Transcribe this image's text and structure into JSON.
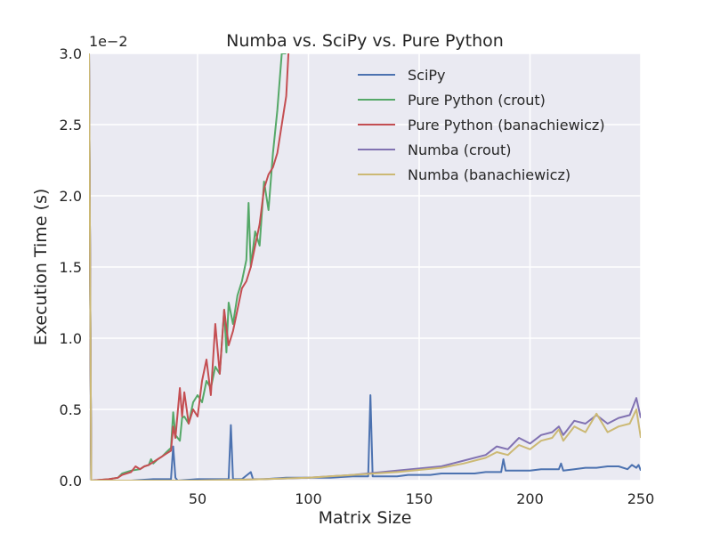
{
  "chart_data": {
    "type": "line",
    "title": "Numba vs. SciPy vs. Pure Python",
    "xlabel": "Matrix Size",
    "ylabel": "Execution Time (s)",
    "y_offset_label": "1e−2",
    "xlim": [
      1,
      250
    ],
    "ylim": [
      0,
      3.0
    ],
    "y_scale_note": "values in units of 1e-2 seconds",
    "grid": true,
    "legend_position": "top-right",
    "background": "#eaeaf2",
    "xticks": [
      50,
      100,
      150,
      200,
      250
    ],
    "yticks": [
      0.0,
      0.5,
      1.0,
      1.5,
      2.0,
      2.5,
      3.0
    ],
    "xtick_labels": [
      "50",
      "100",
      "150",
      "200",
      "250"
    ],
    "ytick_labels": [
      "0.0",
      "0.5",
      "1.0",
      "1.5",
      "2.0",
      "2.5",
      "3.0"
    ],
    "series": [
      {
        "name": "SciPy",
        "color": "#4c72b0",
        "points": [
          [
            1,
            3.0
          ],
          [
            2,
            0.0
          ],
          [
            10,
            0.0
          ],
          [
            20,
            0.0
          ],
          [
            30,
            0.01
          ],
          [
            38,
            0.01
          ],
          [
            39,
            0.24
          ],
          [
            40,
            0.02
          ],
          [
            41,
            0.0
          ],
          [
            50,
            0.01
          ],
          [
            60,
            0.01
          ],
          [
            64,
            0.01
          ],
          [
            65,
            0.39
          ],
          [
            66,
            0.01
          ],
          [
            70,
            0.01
          ],
          [
            74,
            0.06
          ],
          [
            75,
            0.01
          ],
          [
            80,
            0.01
          ],
          [
            90,
            0.02
          ],
          [
            100,
            0.02
          ],
          [
            110,
            0.02
          ],
          [
            120,
            0.03
          ],
          [
            127,
            0.03
          ],
          [
            128,
            0.6
          ],
          [
            129,
            0.03
          ],
          [
            135,
            0.03
          ],
          [
            140,
            0.03
          ],
          [
            145,
            0.04
          ],
          [
            150,
            0.04
          ],
          [
            155,
            0.04
          ],
          [
            160,
            0.05
          ],
          [
            165,
            0.05
          ],
          [
            170,
            0.05
          ],
          [
            175,
            0.05
          ],
          [
            180,
            0.06
          ],
          [
            185,
            0.06
          ],
          [
            187,
            0.06
          ],
          [
            188,
            0.15
          ],
          [
            189,
            0.07
          ],
          [
            195,
            0.07
          ],
          [
            200,
            0.07
          ],
          [
            205,
            0.08
          ],
          [
            210,
            0.08
          ],
          [
            213,
            0.08
          ],
          [
            214,
            0.12
          ],
          [
            215,
            0.07
          ],
          [
            220,
            0.08
          ],
          [
            225,
            0.09
          ],
          [
            230,
            0.09
          ],
          [
            235,
            0.1
          ],
          [
            240,
            0.1
          ],
          [
            244,
            0.08
          ],
          [
            246,
            0.11
          ],
          [
            248,
            0.09
          ],
          [
            249,
            0.11
          ],
          [
            250,
            0.07
          ]
        ]
      },
      {
        "name": "Pure Python (crout)",
        "color": "#55a868",
        "points": [
          [
            1,
            3.0
          ],
          [
            2,
            0.0
          ],
          [
            10,
            0.01
          ],
          [
            14,
            0.02
          ],
          [
            16,
            0.05
          ],
          [
            20,
            0.07
          ],
          [
            24,
            0.08
          ],
          [
            26,
            0.1
          ],
          [
            28,
            0.11
          ],
          [
            29,
            0.15
          ],
          [
            30,
            0.12
          ],
          [
            32,
            0.15
          ],
          [
            34,
            0.17
          ],
          [
            36,
            0.2
          ],
          [
            38,
            0.23
          ],
          [
            39,
            0.48
          ],
          [
            40,
            0.32
          ],
          [
            42,
            0.28
          ],
          [
            43,
            0.44
          ],
          [
            44,
            0.45
          ],
          [
            46,
            0.4
          ],
          [
            48,
            0.55
          ],
          [
            50,
            0.6
          ],
          [
            52,
            0.55
          ],
          [
            54,
            0.7
          ],
          [
            56,
            0.65
          ],
          [
            58,
            0.8
          ],
          [
            60,
            0.75
          ],
          [
            62,
            1.2
          ],
          [
            63,
            0.9
          ],
          [
            64,
            1.25
          ],
          [
            66,
            1.1
          ],
          [
            68,
            1.3
          ],
          [
            70,
            1.4
          ],
          [
            72,
            1.55
          ],
          [
            73,
            1.95
          ],
          [
            74,
            1.5
          ],
          [
            76,
            1.75
          ],
          [
            78,
            1.65
          ],
          [
            80,
            2.1
          ],
          [
            82,
            1.9
          ],
          [
            84,
            2.3
          ],
          [
            86,
            2.6
          ],
          [
            88,
            3.0
          ],
          [
            90,
            3.0
          ]
        ]
      },
      {
        "name": "Pure Python (banachiewicz)",
        "color": "#c44e52",
        "points": [
          [
            1,
            3.0
          ],
          [
            2,
            0.0
          ],
          [
            10,
            0.01
          ],
          [
            14,
            0.02
          ],
          [
            16,
            0.04
          ],
          [
            20,
            0.06
          ],
          [
            22,
            0.1
          ],
          [
            24,
            0.08
          ],
          [
            26,
            0.1
          ],
          [
            28,
            0.11
          ],
          [
            30,
            0.13
          ],
          [
            32,
            0.15
          ],
          [
            34,
            0.17
          ],
          [
            36,
            0.19
          ],
          [
            38,
            0.21
          ],
          [
            39,
            0.38
          ],
          [
            40,
            0.3
          ],
          [
            42,
            0.65
          ],
          [
            43,
            0.45
          ],
          [
            44,
            0.62
          ],
          [
            46,
            0.4
          ],
          [
            48,
            0.5
          ],
          [
            50,
            0.45
          ],
          [
            52,
            0.7
          ],
          [
            54,
            0.85
          ],
          [
            56,
            0.6
          ],
          [
            58,
            1.1
          ],
          [
            60,
            0.75
          ],
          [
            62,
            1.2
          ],
          [
            64,
            0.95
          ],
          [
            66,
            1.05
          ],
          [
            68,
            1.2
          ],
          [
            70,
            1.35
          ],
          [
            72,
            1.4
          ],
          [
            74,
            1.5
          ],
          [
            76,
            1.65
          ],
          [
            78,
            1.8
          ],
          [
            80,
            2.05
          ],
          [
            82,
            2.15
          ],
          [
            84,
            2.2
          ],
          [
            86,
            2.3
          ],
          [
            88,
            2.5
          ],
          [
            90,
            2.7
          ],
          [
            91,
            3.0
          ]
        ]
      },
      {
        "name": "Numba (crout)",
        "color": "#8172b2",
        "points": [
          [
            1,
            3.0
          ],
          [
            2,
            0.0
          ],
          [
            50,
            0.0
          ],
          [
            80,
            0.01
          ],
          [
            100,
            0.02
          ],
          [
            120,
            0.04
          ],
          [
            140,
            0.07
          ],
          [
            160,
            0.1
          ],
          [
            170,
            0.14
          ],
          [
            180,
            0.18
          ],
          [
            185,
            0.24
          ],
          [
            190,
            0.22
          ],
          [
            195,
            0.3
          ],
          [
            200,
            0.26
          ],
          [
            205,
            0.32
          ],
          [
            210,
            0.34
          ],
          [
            213,
            0.38
          ],
          [
            215,
            0.32
          ],
          [
            220,
            0.42
          ],
          [
            225,
            0.4
          ],
          [
            230,
            0.46
          ],
          [
            235,
            0.4
          ],
          [
            240,
            0.44
          ],
          [
            245,
            0.46
          ],
          [
            248,
            0.58
          ],
          [
            250,
            0.44
          ]
        ]
      },
      {
        "name": "Numba (banachiewicz)",
        "color": "#ccb974",
        "points": [
          [
            1,
            3.0
          ],
          [
            2,
            0.0
          ],
          [
            50,
            0.0
          ],
          [
            80,
            0.01
          ],
          [
            100,
            0.02
          ],
          [
            120,
            0.04
          ],
          [
            140,
            0.06
          ],
          [
            160,
            0.09
          ],
          [
            170,
            0.12
          ],
          [
            180,
            0.16
          ],
          [
            185,
            0.2
          ],
          [
            190,
            0.18
          ],
          [
            195,
            0.25
          ],
          [
            200,
            0.22
          ],
          [
            205,
            0.28
          ],
          [
            210,
            0.3
          ],
          [
            213,
            0.36
          ],
          [
            215,
            0.28
          ],
          [
            220,
            0.38
          ],
          [
            225,
            0.34
          ],
          [
            230,
            0.47
          ],
          [
            235,
            0.34
          ],
          [
            240,
            0.38
          ],
          [
            245,
            0.4
          ],
          [
            248,
            0.5
          ],
          [
            250,
            0.3
          ]
        ]
      }
    ]
  }
}
